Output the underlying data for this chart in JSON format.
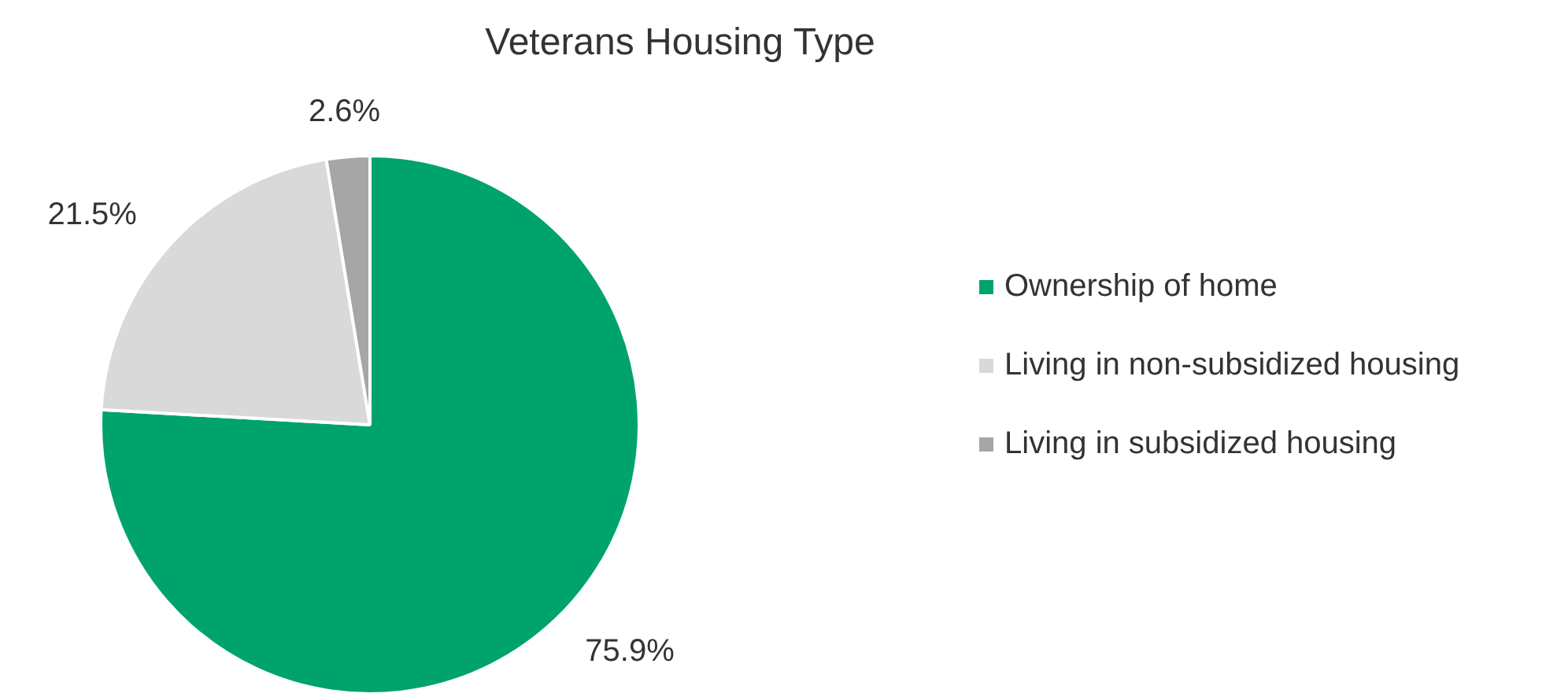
{
  "chart_data": {
    "type": "pie",
    "title": "Veterans Housing Type",
    "categories": [
      "Ownership of home",
      "Living in non-subsidized housing",
      "Living in subsidized housing"
    ],
    "values": [
      75.9,
      21.5,
      2.6
    ],
    "colors": [
      "#00a36c",
      "#d9d9d9",
      "#a6a6a6"
    ],
    "value_labels": [
      "75.9%",
      "21.5%",
      "2.6%"
    ],
    "legend": "right"
  }
}
